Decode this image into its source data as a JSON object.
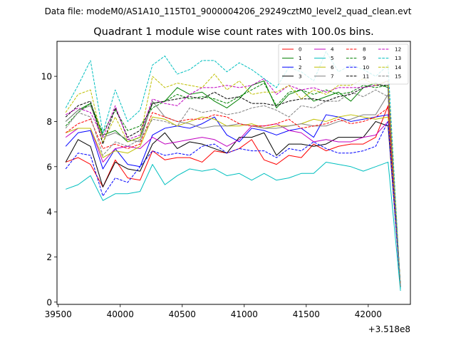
{
  "figure": {
    "suptitle": "Data file: modeM0/AS1A10_115T01_9000004206_29249cztM0_level2_quad_clean.evt"
  },
  "chart_data": {
    "type": "line",
    "title": "Quadrant 1 module wise count rates with 100.0s bins.",
    "xlabel": "",
    "ylabel": "",
    "x_offset_label": "+3.518e8",
    "xlim": [
      39490,
      42340
    ],
    "ylim": [
      -0.1,
      11.55
    ],
    "xticks": [
      39500,
      40000,
      40500,
      41000,
      41500,
      42000
    ],
    "yticks": [
      0,
      2,
      4,
      6,
      8,
      10
    ],
    "legend_position": "top-right",
    "legend_columns": 4,
    "x": [
      39560,
      39660,
      39760,
      39860,
      39960,
      40060,
      40160,
      40260,
      40360,
      40460,
      40560,
      40660,
      40760,
      40860,
      40960,
      41060,
      41160,
      41260,
      41360,
      41460,
      41560,
      41660,
      41760,
      41860,
      41960,
      42060,
      42160,
      42260
    ],
    "series": [
      {
        "name": "0",
        "color": "#ff0000",
        "dash": "solid",
        "values": [
          6.2,
          6.4,
          6.1,
          5.1,
          6.3,
          5.5,
          5.4,
          6.7,
          6.3,
          6.4,
          6.4,
          6.2,
          6.7,
          6.6,
          6.8,
          7.2,
          6.3,
          6.1,
          6.5,
          6.4,
          7.0,
          6.7,
          6.9,
          7.0,
          7.0,
          7.3,
          8.7,
          0.7
        ]
      },
      {
        "name": "1",
        "color": "#008000",
        "dash": "solid",
        "values": [
          8.0,
          8.5,
          8.8,
          7.4,
          7.6,
          7.1,
          7.3,
          8.8,
          8.9,
          9.5,
          9.2,
          9.3,
          8.9,
          8.6,
          9.0,
          9.6,
          9.8,
          8.6,
          9.2,
          9.4,
          8.9,
          9.1,
          9.3,
          8.9,
          9.5,
          9.7,
          9.5,
          0.7
        ]
      },
      {
        "name": "2",
        "color": "#0000ff",
        "dash": "solid",
        "values": [
          6.9,
          7.5,
          7.6,
          5.9,
          6.8,
          6.1,
          6.0,
          7.4,
          7.7,
          7.8,
          7.7,
          7.9,
          8.2,
          7.4,
          7.1,
          7.7,
          7.6,
          7.4,
          7.6,
          7.7,
          7.3,
          8.3,
          8.2,
          8.0,
          8.1,
          8.2,
          8.3,
          0.7
        ]
      },
      {
        "name": "3",
        "color": "#000000",
        "dash": "solid",
        "values": [
          6.2,
          7.2,
          6.9,
          5.1,
          6.2,
          5.9,
          5.8,
          7.0,
          7.5,
          6.8,
          7.1,
          7.0,
          6.8,
          6.6,
          7.3,
          7.3,
          7.5,
          6.5,
          7.0,
          7.0,
          6.9,
          7.0,
          7.3,
          7.3,
          7.3,
          8.0,
          7.8,
          0.7
        ]
      },
      {
        "name": "4",
        "color": "#c000c0",
        "dash": "solid",
        "values": [
          7.3,
          7.7,
          7.7,
          6.2,
          6.8,
          6.9,
          6.8,
          7.3,
          7.0,
          7.1,
          7.2,
          7.3,
          7.2,
          6.9,
          7.2,
          7.8,
          7.8,
          7.9,
          7.6,
          7.5,
          7.1,
          7.2,
          7.1,
          7.1,
          7.3,
          7.4,
          8.0,
          0.7
        ]
      },
      {
        "name": "5",
        "color": "#00bfbf",
        "dash": "solid",
        "values": [
          5.0,
          5.2,
          5.6,
          4.5,
          4.8,
          4.8,
          4.9,
          6.1,
          5.2,
          5.6,
          5.9,
          5.8,
          5.9,
          5.6,
          5.7,
          5.4,
          5.7,
          5.4,
          5.5,
          5.7,
          5.7,
          6.2,
          6.1,
          6.0,
          5.8,
          6.0,
          6.2,
          0.5
        ]
      },
      {
        "name": "6",
        "color": "#bfbf00",
        "dash": "solid",
        "values": [
          7.5,
          7.7,
          7.7,
          6.4,
          6.7,
          6.6,
          6.9,
          8.2,
          8.1,
          7.8,
          8.0,
          8.2,
          8.1,
          7.8,
          7.8,
          7.9,
          7.7,
          7.8,
          7.8,
          7.9,
          8.1,
          8.0,
          8.2,
          8.3,
          8.2,
          8.1,
          8.2,
          0.7
        ]
      },
      {
        "name": "7",
        "color": "#808080",
        "dash": "solid",
        "values": [
          8.0,
          8.5,
          8.7,
          7.3,
          7.5,
          7.2,
          7.1,
          8.9,
          8.2,
          8.0,
          7.9,
          7.7,
          7.8,
          7.8,
          7.9,
          7.8,
          7.7,
          7.7,
          7.8,
          7.9,
          7.8,
          7.8,
          8.0,
          8.1,
          8.3,
          8.3,
          9.2,
          0.7
        ]
      },
      {
        "name": "8",
        "color": "#ff0000",
        "dash": "dashed",
        "values": [
          7.5,
          7.9,
          8.1,
          6.8,
          7.0,
          6.8,
          7.0,
          8.4,
          8.2,
          8.0,
          8.1,
          8.1,
          8.3,
          8.2,
          7.9,
          7.8,
          7.8,
          7.9,
          8.1,
          7.7,
          7.8,
          7.9,
          8.1,
          7.9,
          8.0,
          8.2,
          8.6,
          0.7
        ]
      },
      {
        "name": "9",
        "color": "#008000",
        "dash": "dashed",
        "values": [
          7.8,
          8.4,
          8.8,
          7.5,
          8.5,
          7.6,
          7.8,
          8.6,
          8.9,
          9.2,
          9.0,
          9.1,
          9.0,
          8.8,
          9.1,
          9.4,
          9.7,
          8.7,
          9.3,
          9.4,
          9.2,
          9.4,
          9.2,
          9.3,
          9.6,
          9.5,
          9.6,
          0.7
        ]
      },
      {
        "name": "10",
        "color": "#0000ff",
        "dash": "dashed",
        "values": [
          5.9,
          6.6,
          6.5,
          4.7,
          5.5,
          5.3,
          6.0,
          6.7,
          6.5,
          6.6,
          6.5,
          6.9,
          7.0,
          6.6,
          6.8,
          6.7,
          6.7,
          6.4,
          6.8,
          6.7,
          7.1,
          6.8,
          6.6,
          6.6,
          6.7,
          6.9,
          8.0,
          0.7
        ]
      },
      {
        "name": "11",
        "color": "#000000",
        "dash": "dashed",
        "values": [
          8.2,
          8.7,
          8.9,
          7.0,
          8.6,
          7.3,
          7.6,
          8.8,
          8.9,
          9.0,
          9.1,
          9.0,
          9.3,
          9.0,
          9.1,
          8.8,
          8.8,
          8.7,
          8.9,
          9.0,
          9.0,
          8.9,
          9.1,
          9.2,
          9.5,
          9.6,
          9.6,
          0.7
        ]
      },
      {
        "name": "12",
        "color": "#c000c0",
        "dash": "dashed",
        "values": [
          8.3,
          8.6,
          8.4,
          7.3,
          8.7,
          7.2,
          7.4,
          9.0,
          8.8,
          8.7,
          9.2,
          9.5,
          9.5,
          9.6,
          9.5,
          9.6,
          9.9,
          9.2,
          9.6,
          9.4,
          9.5,
          9.3,
          9.5,
          9.5,
          9.5,
          9.6,
          9.8,
          0.7
        ]
      },
      {
        "name": "13",
        "color": "#00bfbf",
        "dash": "dashed",
        "values": [
          8.6,
          9.6,
          10.7,
          7.5,
          9.4,
          8.0,
          8.5,
          10.5,
          10.9,
          10.1,
          10.3,
          10.7,
          10.7,
          10.2,
          10.6,
          10.3,
          9.9,
          9.5,
          10.4,
          10.2,
          9.8,
          11.1,
          10.2,
          10.5,
          10.3,
          10.0,
          10.5,
          0.6
        ]
      },
      {
        "name": "14",
        "color": "#bfbf00",
        "dash": "dashed",
        "values": [
          8.4,
          9.2,
          9.4,
          7.1,
          8.2,
          7.1,
          7.3,
          10.0,
          9.5,
          9.7,
          9.6,
          9.5,
          10.1,
          9.4,
          9.8,
          9.2,
          9.3,
          9.3,
          9.6,
          9.0,
          9.4,
          9.2,
          9.6,
          9.6,
          9.9,
          9.6,
          9.8,
          0.7
        ]
      },
      {
        "name": "15",
        "color": "#808080",
        "dash": "dashed",
        "values": [
          7.7,
          8.4,
          8.2,
          6.5,
          7.1,
          6.9,
          7.2,
          8.1,
          8.0,
          7.8,
          8.6,
          8.4,
          8.5,
          8.3,
          8.4,
          8.6,
          8.7,
          8.5,
          8.2,
          8.7,
          8.6,
          8.9,
          8.9,
          9.3,
          9.1,
          9.4,
          9.1,
          0.7
        ]
      }
    ]
  }
}
